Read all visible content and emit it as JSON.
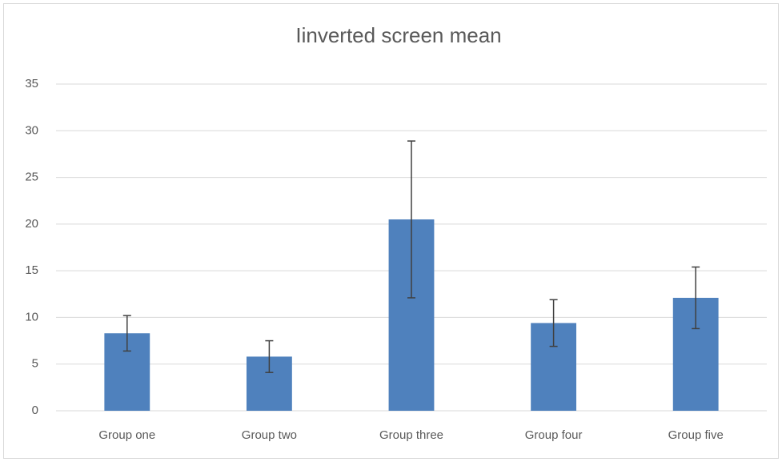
{
  "chart_data": {
    "type": "bar",
    "title": "Iinverted screen mean",
    "categories": [
      "Group one",
      "Group two",
      "Group three",
      "Group four",
      "Group five"
    ],
    "values": [
      8.3,
      5.8,
      20.5,
      9.4,
      12.1
    ],
    "errors": [
      1.9,
      1.7,
      8.4,
      2.5,
      3.3
    ],
    "color": "#4f81bd",
    "ylim": [
      0,
      35
    ],
    "yticks": [
      0,
      5,
      10,
      15,
      20,
      25,
      30,
      35
    ],
    "grid": true
  }
}
